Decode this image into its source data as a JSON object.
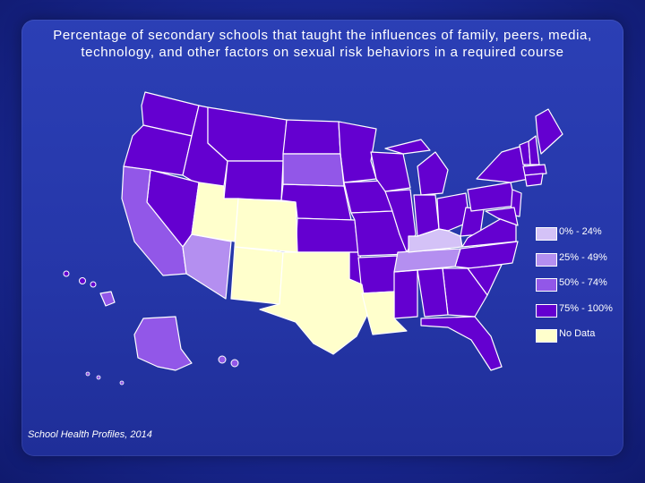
{
  "title": "Percentage of secondary schools that taught the influences of family, peers, media, technology, and other factors on sexual risk behaviors in a required course",
  "source": "School Health Profiles, 2014",
  "legend": [
    {
      "label": "0% - 24%",
      "color": "#d4c2f7"
    },
    {
      "label": "25% - 49%",
      "color": "#b48ff0"
    },
    {
      "label": "50% - 74%",
      "color": "#9257e8"
    },
    {
      "label": "75% - 100%",
      "color": "#6400d0"
    },
    {
      "label": "No Data",
      "color": "#ffffcc"
    }
  ],
  "map_data": {
    "type": "choropleth",
    "classes": {
      "75% - 100%": [
        "WA",
        "OR",
        "ID",
        "MT",
        "WY",
        "ND",
        "MN",
        "NE",
        "KS",
        "OK",
        "MO",
        "AR",
        "IA",
        "WI",
        "MI",
        "IL",
        "IN",
        "OH",
        "MS",
        "AL",
        "GA",
        "FL",
        "SC",
        "NC",
        "VA",
        "WV",
        "PA",
        "NY",
        "NJ",
        "ME",
        "VT",
        "NH",
        "MA",
        "CT",
        "RI",
        "DE",
        "MD",
        "NV"
      ],
      "50% - 74%": [
        "CA",
        "SD",
        "HI",
        "AK"
      ],
      "25% - 49%": [
        "AZ",
        "TN"
      ],
      "0% - 24%": [
        "KY"
      ],
      "No Data": [
        "UT",
        "CO",
        "NM",
        "TX",
        "LA"
      ]
    }
  }
}
